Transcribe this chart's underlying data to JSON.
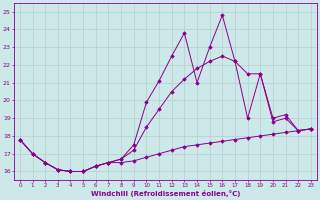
{
  "background_color": "#cce8e8",
  "line_color": "#8b008b",
  "grid_color": "#b0c8c8",
  "xlabel": "Windchill (Refroidissement éolien,°C)",
  "xlabel_color": "#8b008b",
  "xlim": [
    -0.5,
    23.5
  ],
  "ylim": [
    15.5,
    25.5
  ],
  "yticks": [
    16,
    17,
    18,
    19,
    20,
    21,
    22,
    23,
    24,
    25
  ],
  "xticks": [
    0,
    1,
    2,
    3,
    4,
    5,
    6,
    7,
    8,
    9,
    10,
    11,
    12,
    13,
    14,
    15,
    16,
    17,
    18,
    19,
    20,
    21,
    22,
    23
  ],
  "series": [
    {
      "x": [
        0,
        1,
        2,
        3,
        4,
        5,
        6,
        7,
        8,
        9,
        10,
        11,
        12,
        13,
        14,
        15,
        16,
        17,
        18,
        19,
        20,
        21,
        22,
        23
      ],
      "y": [
        17.8,
        17.0,
        16.5,
        16.1,
        16.0,
        16.0,
        16.3,
        16.5,
        16.5,
        16.6,
        16.8,
        17.0,
        17.2,
        17.4,
        17.5,
        17.6,
        17.7,
        17.8,
        17.9,
        18.0,
        18.1,
        18.2,
        18.3,
        18.4
      ]
    },
    {
      "x": [
        0,
        1,
        2,
        3,
        4,
        5,
        6,
        7,
        8,
        9,
        10,
        11,
        12,
        13,
        14,
        15,
        16,
        17,
        18,
        19,
        20,
        21,
        22,
        23
      ],
      "y": [
        17.8,
        17.0,
        16.5,
        16.1,
        16.0,
        16.0,
        16.3,
        16.5,
        16.7,
        17.2,
        18.5,
        19.5,
        20.5,
        21.2,
        21.8,
        22.2,
        22.5,
        22.2,
        21.5,
        21.5,
        19.0,
        19.2,
        18.3,
        18.4
      ]
    },
    {
      "x": [
        0,
        1,
        2,
        3,
        4,
        5,
        6,
        7,
        8,
        9,
        10,
        11,
        12,
        13,
        14,
        15,
        16,
        17,
        18,
        19,
        20,
        21,
        22,
        23
      ],
      "y": [
        17.8,
        17.0,
        16.5,
        16.1,
        16.0,
        16.0,
        16.3,
        16.5,
        16.7,
        17.5,
        19.9,
        21.1,
        22.5,
        23.8,
        21.0,
        23.0,
        24.8,
        22.2,
        19.0,
        21.5,
        18.8,
        19.0,
        18.3,
        18.4
      ]
    }
  ]
}
